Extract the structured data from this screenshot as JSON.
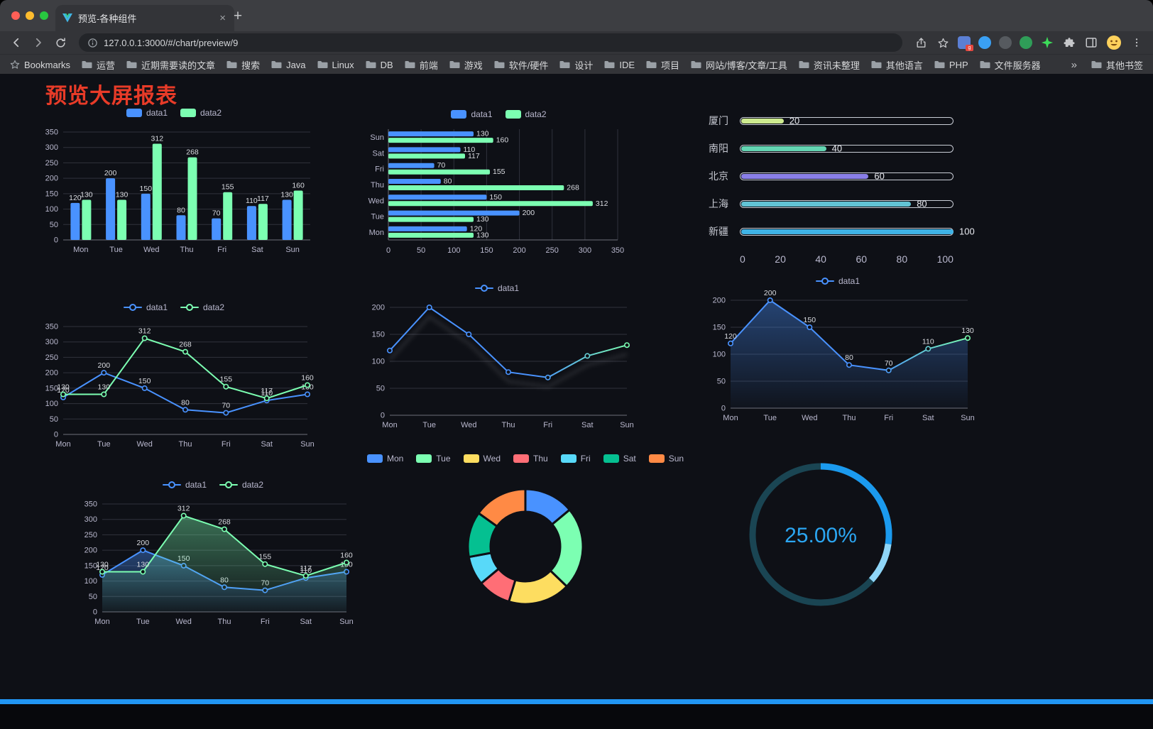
{
  "browser": {
    "tab_title": "预览-各种组件",
    "new_tab_icon": "+",
    "close_tab_icon": "×",
    "url": "127.0.0.1:3000/#/chart/preview/9",
    "extension_badge": "g",
    "bookmarks_label": "Bookmarks",
    "bookmark_items": [
      "运营",
      "近期需要读的文章",
      "搜索",
      "Java",
      "Linux",
      "DB",
      "前端",
      "游戏",
      "软件/硬件",
      "设计",
      "IDE",
      "项目",
      "网站/博客/文章/工具",
      "资讯未整理",
      "其他语言",
      "PHP",
      "文件服务器"
    ],
    "bookmarks_overflow": "»",
    "other_bookmarks": "其他书签"
  },
  "page": {
    "title": "预览大屏报表",
    "title_color": "#e83b28",
    "background_color": "#0e1016",
    "footer_color": "#2196f3"
  },
  "chart_data": [
    {
      "name": "bar-chart",
      "type": "bar",
      "orientation": "vertical",
      "categories": [
        "Mon",
        "Tue",
        "Wed",
        "Thu",
        "Fri",
        "Sat",
        "Sun"
      ],
      "series": [
        {
          "name": "data1",
          "color": "#4992ff",
          "values": [
            120,
            200,
            150,
            80,
            70,
            110,
            130
          ]
        },
        {
          "name": "data2",
          "color": "#7cffb2",
          "values": [
            130,
            130,
            312,
            268,
            155,
            117,
            160
          ]
        }
      ],
      "ylim": [
        0,
        350
      ],
      "ytick": 50,
      "legend": true,
      "value_labels": true,
      "grid": true
    },
    {
      "name": "horizontal-bar-chart",
      "type": "bar",
      "orientation": "horizontal",
      "categories": [
        "Mon",
        "Tue",
        "Wed",
        "Thu",
        "Fri",
        "Sat",
        "Sun"
      ],
      "series": [
        {
          "name": "data1",
          "color": "#4992ff",
          "values": [
            120,
            200,
            150,
            80,
            70,
            110,
            130
          ]
        },
        {
          "name": "data2",
          "color": "#7cffb2",
          "values": [
            130,
            130,
            312,
            268,
            155,
            117,
            160
          ]
        }
      ],
      "xlim": [
        0,
        350
      ],
      "xtick": 50,
      "legend": true,
      "value_labels": true,
      "grid": true
    },
    {
      "name": "progress-bars",
      "type": "progress",
      "items": [
        {
          "label": "厦门",
          "value": 20,
          "color": "#cdeb8f"
        },
        {
          "label": "南阳",
          "value": 40,
          "color": "#63d5b2"
        },
        {
          "label": "北京",
          "value": 60,
          "color": "#8a7fe8"
        },
        {
          "label": "上海",
          "value": 80,
          "color": "#62c4d5"
        },
        {
          "label": "新疆",
          "value": 100,
          "color": "#3fb3e6"
        }
      ],
      "axis_ticks": [
        0,
        20,
        40,
        60,
        80,
        100
      ],
      "xlim": [
        0,
        100
      ]
    },
    {
      "name": "line-chart-two-series",
      "type": "line",
      "categories": [
        "Mon",
        "Tue",
        "Wed",
        "Thu",
        "Fri",
        "Sat",
        "Sun"
      ],
      "series": [
        {
          "name": "data1",
          "color": "#4992ff",
          "values": [
            120,
            200,
            150,
            80,
            70,
            110,
            130
          ]
        },
        {
          "name": "data2",
          "color": "#7cffb2",
          "values": [
            130,
            130,
            312,
            268,
            155,
            117,
            160
          ]
        }
      ],
      "ylim": [
        0,
        350
      ],
      "ytick": 50,
      "legend": true,
      "value_labels": true,
      "markers": true,
      "grid": true
    },
    {
      "name": "line-chart-gradient",
      "type": "line",
      "categories": [
        "Mon",
        "Tue",
        "Wed",
        "Thu",
        "Fri",
        "Sat",
        "Sun"
      ],
      "series": [
        {
          "name": "data1",
          "color_start": "#4992ff",
          "color_end": "#7cffb2",
          "values": [
            120,
            200,
            150,
            80,
            70,
            110,
            130
          ]
        }
      ],
      "ylim": [
        0,
        200
      ],
      "ytick": 50,
      "legend": true,
      "markers": true,
      "shadow": true,
      "grid": true
    },
    {
      "name": "line-chart-area",
      "type": "line",
      "categories": [
        "Mon",
        "Tue",
        "Wed",
        "Thu",
        "Fri",
        "Sat",
        "Sun"
      ],
      "series": [
        {
          "name": "data1",
          "color_start": "#4992ff",
          "color_end": "#7cffb2",
          "values": [
            120,
            200,
            150,
            80,
            70,
            110,
            130
          ]
        }
      ],
      "ylim": [
        0,
        200
      ],
      "ytick": 50,
      "legend": true,
      "value_labels": true,
      "markers": true,
      "area": true,
      "grid": true
    },
    {
      "name": "line-chart-two-series-area",
      "type": "line",
      "categories": [
        "Mon",
        "Tue",
        "Wed",
        "Thu",
        "Fri",
        "Sat",
        "Sun"
      ],
      "series": [
        {
          "name": "data1",
          "color": "#4992ff",
          "values": [
            120,
            200,
            150,
            80,
            70,
            110,
            130
          ]
        },
        {
          "name": "data2",
          "color": "#7cffb2",
          "values": [
            130,
            130,
            312,
            268,
            155,
            117,
            160
          ]
        }
      ],
      "ylim": [
        0,
        350
      ],
      "ytick": 50,
      "legend": true,
      "value_labels": true,
      "markers": true,
      "area": true,
      "grid": true
    },
    {
      "name": "donut-chart",
      "type": "pie",
      "categories": [
        "Mon",
        "Tue",
        "Wed",
        "Thu",
        "Fri",
        "Sat",
        "Sun"
      ],
      "values": [
        120,
        200,
        150,
        80,
        70,
        110,
        130
      ],
      "colors": [
        "#4992ff",
        "#7cffb2",
        "#fddd60",
        "#ff6e76",
        "#58d9f9",
        "#05c091",
        "#ff8a45"
      ],
      "inner_radius_ratio": 0.6,
      "legend": true,
      "legend_position": "top"
    },
    {
      "name": "gauge-chart",
      "type": "gauge",
      "value": 25,
      "label": "25.00%",
      "color": "#1b9aee",
      "tip_color": "#8fd6f8",
      "track_color": "#1a4553",
      "label_color": "#2ba6f2"
    }
  ]
}
